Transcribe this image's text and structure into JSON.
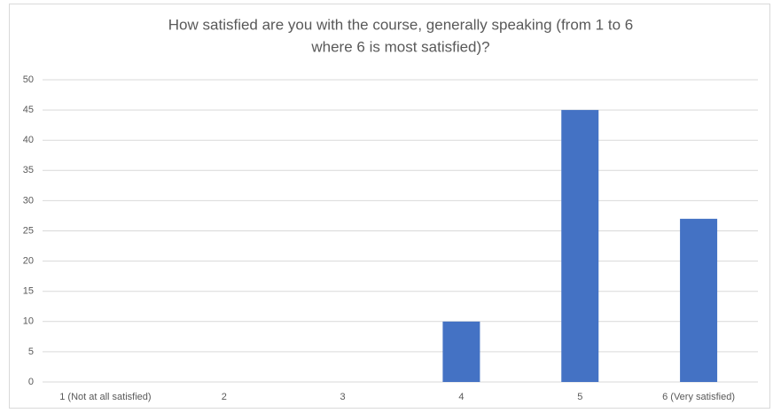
{
  "chart_data": {
    "type": "bar",
    "title": [
      "How satisfied are you with the course, generally speaking (from 1 to 6",
      "where 6 is most satisfied)?"
    ],
    "categories": [
      "1 (Not at all satisfied)",
      "2",
      "3",
      "4",
      "5",
      "6 (Very satisfied)"
    ],
    "values": [
      0,
      0,
      0,
      10,
      45,
      27
    ],
    "color": "#4472c4",
    "ylim": [
      0,
      50
    ],
    "yticks": [
      0,
      5,
      10,
      15,
      20,
      25,
      30,
      35,
      40,
      45,
      50
    ],
    "grid": true
  }
}
